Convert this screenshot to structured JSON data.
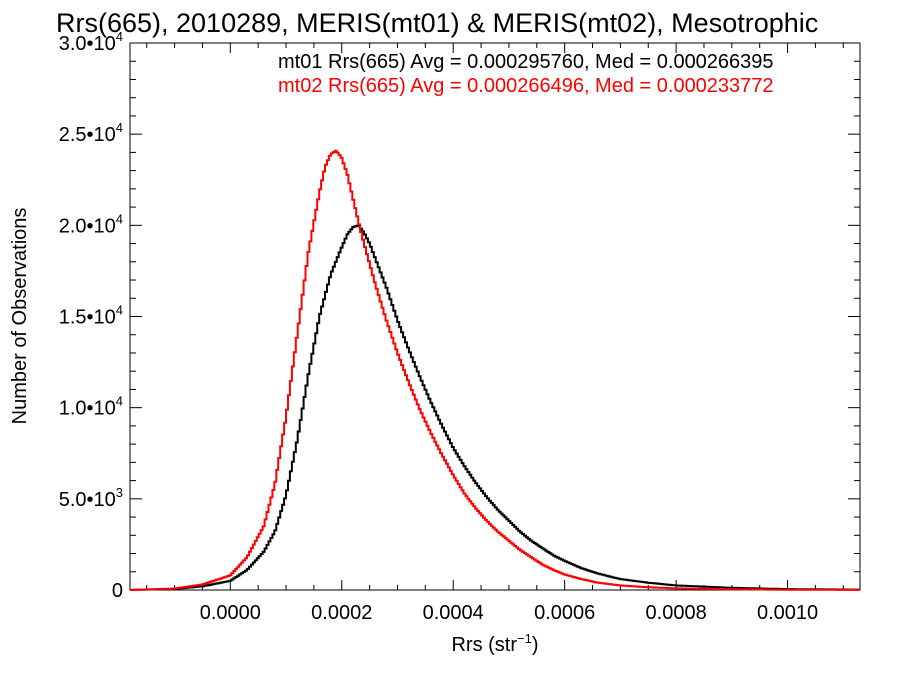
{
  "chart_data": {
    "type": "line",
    "title": "Rrs(665), 2010289, MERIS(mt01) & MERIS(mt02), Mesotrophic",
    "xlabel": "Rrs (str",
    "xlabel_sup": "−1",
    "xlabel_end": ")",
    "ylabel": "Number of Observations",
    "xlim": [
      -0.00018,
      0.00113
    ],
    "ylim": [
      0,
      30000
    ],
    "x_ticks": [
      {
        "value": 0.0,
        "label": "0.0000"
      },
      {
        "value": 0.0002,
        "label": "0.0002"
      },
      {
        "value": 0.0004,
        "label": "0.0004"
      },
      {
        "value": 0.0006,
        "label": "0.0006"
      },
      {
        "value": 0.0008,
        "label": "0.0008"
      },
      {
        "value": 0.001,
        "label": "0.0010"
      }
    ],
    "y_ticks": [
      {
        "value": 0,
        "base": "0",
        "exp": ""
      },
      {
        "value": 5000,
        "base": "5.0•10",
        "exp": "3"
      },
      {
        "value": 10000,
        "base": "1.0•10",
        "exp": "4"
      },
      {
        "value": 15000,
        "base": "1.5•10",
        "exp": "4"
      },
      {
        "value": 20000,
        "base": "2.0•10",
        "exp": "4"
      },
      {
        "value": 25000,
        "base": "2.5•10",
        "exp": "4"
      },
      {
        "value": 30000,
        "base": "3.0•10",
        "exp": "4"
      }
    ],
    "stats": [
      {
        "text": "mt01 Rrs(665) Avg = 0.000295760, Med = 0.000266395",
        "color": "#000000"
      },
      {
        "text": "mt02 Rrs(665) Avg = 0.000266496, Med = 0.000233772",
        "color": "#ff0000"
      }
    ],
    "series": [
      {
        "color": "#000000",
        "points": [
          [
            -0.00018,
            0
          ],
          [
            -0.0001,
            60
          ],
          [
            -5e-05,
            200
          ],
          [
            0.0,
            500
          ],
          [
            3e-05,
            1100
          ],
          [
            6e-05,
            2100
          ],
          [
            8e-05,
            3200
          ],
          [
            0.0001,
            5200
          ],
          [
            0.00012,
            8200
          ],
          [
            0.00014,
            11800
          ],
          [
            0.00016,
            15000
          ],
          [
            0.00018,
            17300
          ],
          [
            0.0002,
            18800
          ],
          [
            0.00021,
            19500
          ],
          [
            0.00022,
            19900
          ],
          [
            0.00023,
            20000
          ],
          [
            0.00024,
            19600
          ],
          [
            0.00025,
            19000
          ],
          [
            0.00026,
            18200
          ],
          [
            0.00028,
            16600
          ],
          [
            0.0003,
            14800
          ],
          [
            0.00032,
            13200
          ],
          [
            0.00034,
            11700
          ],
          [
            0.00036,
            10300
          ],
          [
            0.00038,
            9000
          ],
          [
            0.0004,
            7800
          ],
          [
            0.00042,
            6800
          ],
          [
            0.00044,
            5900
          ],
          [
            0.00046,
            5100
          ],
          [
            0.00048,
            4400
          ],
          [
            0.0005,
            3800
          ],
          [
            0.00052,
            3200
          ],
          [
            0.00054,
            2700
          ],
          [
            0.00056,
            2300
          ],
          [
            0.00058,
            1900
          ],
          [
            0.0006,
            1600
          ],
          [
            0.00063,
            1200
          ],
          [
            0.00066,
            900
          ],
          [
            0.0007,
            600
          ],
          [
            0.00075,
            400
          ],
          [
            0.0008,
            250
          ],
          [
            0.0009,
            120
          ],
          [
            0.001,
            50
          ],
          [
            0.00113,
            20
          ]
        ]
      },
      {
        "color": "#ff0000",
        "points": [
          [
            -0.00018,
            0
          ],
          [
            -0.0001,
            80
          ],
          [
            -5e-05,
            300
          ],
          [
            0.0,
            800
          ],
          [
            3e-05,
            1800
          ],
          [
            6e-05,
            3500
          ],
          [
            8e-05,
            5800
          ],
          [
            0.0001,
            9500
          ],
          [
            0.00012,
            14000
          ],
          [
            0.00014,
            18500
          ],
          [
            0.00016,
            21800
          ],
          [
            0.00017,
            23200
          ],
          [
            0.00018,
            23900
          ],
          [
            0.00019,
            24100
          ],
          [
            0.0002,
            23700
          ],
          [
            0.00021,
            22800
          ],
          [
            0.00022,
            21500
          ],
          [
            0.00023,
            20200
          ],
          [
            0.00024,
            19000
          ],
          [
            0.00026,
            16800
          ],
          [
            0.00028,
            14800
          ],
          [
            0.0003,
            13000
          ],
          [
            0.00032,
            11400
          ],
          [
            0.00034,
            9900
          ],
          [
            0.00036,
            8600
          ],
          [
            0.00038,
            7400
          ],
          [
            0.0004,
            6300
          ],
          [
            0.00042,
            5300
          ],
          [
            0.00044,
            4500
          ],
          [
            0.00046,
            3800
          ],
          [
            0.00048,
            3200
          ],
          [
            0.0005,
            2700
          ],
          [
            0.00052,
            2200
          ],
          [
            0.00054,
            1800
          ],
          [
            0.00056,
            1400
          ],
          [
            0.00058,
            1100
          ],
          [
            0.0006,
            850
          ],
          [
            0.00063,
            600
          ],
          [
            0.00066,
            400
          ],
          [
            0.0007,
            250
          ],
          [
            0.00075,
            150
          ],
          [
            0.0008,
            90
          ],
          [
            0.0009,
            40
          ],
          [
            0.001,
            15
          ],
          [
            0.00113,
            5
          ]
        ]
      }
    ]
  }
}
